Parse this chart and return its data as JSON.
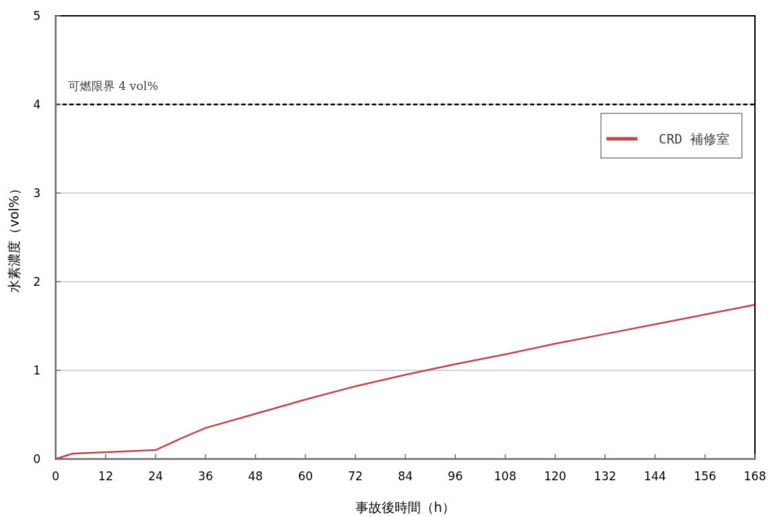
{
  "chart_data": {
    "type": "line",
    "xlabel": "事故後時間（h）",
    "ylabel": "水素濃度（vol%）",
    "x": [
      0,
      4,
      24,
      30,
      36,
      48,
      60,
      72,
      84,
      96,
      108,
      120,
      132,
      144,
      156,
      168
    ],
    "series": [
      {
        "name": "CRD 補修室",
        "color": "#c0454a",
        "values": [
          0,
          0.06,
          0.1,
          0.23,
          0.35,
          0.51,
          0.67,
          0.82,
          0.95,
          1.07,
          1.18,
          1.3,
          1.41,
          1.52,
          1.63,
          1.74
        ]
      }
    ],
    "xlim": [
      0,
      168
    ],
    "xticks": [
      0,
      12,
      24,
      36,
      48,
      60,
      72,
      84,
      96,
      108,
      120,
      132,
      144,
      156,
      168
    ],
    "ylim": [
      0,
      5
    ],
    "yticks": [
      0,
      1,
      2,
      3,
      4,
      5
    ],
    "ref_lines": [
      {
        "axis": "y",
        "value": 4,
        "label": "可燃限界 4 vol%",
        "color": "#000000",
        "line_style": "dashed"
      }
    ],
    "grid": "y",
    "legend": "top right",
    "line_style": "solid"
  }
}
